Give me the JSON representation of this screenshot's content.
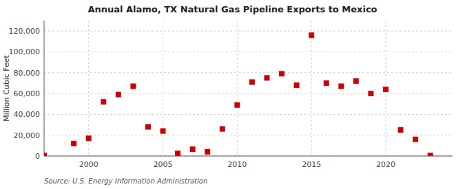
{
  "chart_data": {
    "type": "scatter",
    "title": "Annual Alamo, TX Natural Gas Pipeline Exports to Mexico",
    "ylabel": "Million Cubic Feet",
    "source": "Source: U.S. Energy Information Administration",
    "x": [
      1997,
      1999,
      2000,
      2001,
      2002,
      2003,
      2004,
      2005,
      2006,
      2007,
      2008,
      2009,
      2010,
      2011,
      2012,
      2013,
      2014,
      2015,
      2016,
      2017,
      2018,
      2019,
      2020,
      2021,
      2022,
      2023
    ],
    "values": [
      500,
      12000,
      17000,
      52000,
      59000,
      67000,
      28000,
      24000,
      2500,
      6500,
      4000,
      26000,
      49000,
      71000,
      75000,
      79000,
      68000,
      116000,
      70000,
      67000,
      72000,
      60000,
      64000,
      25000,
      16000,
      500
    ],
    "color": "#cc0000",
    "marker": "square",
    "xlim": [
      1997,
      2024.5
    ],
    "ylim": [
      0,
      130000
    ],
    "xticks": [
      2000,
      2005,
      2010,
      2015,
      2020
    ],
    "yticks": [
      0,
      {
        "value": 20000,
        "label": "20,000"
      },
      {
        "value": 40000,
        "label": "40,000"
      },
      {
        "value": 60000,
        "label": "60,000"
      },
      {
        "value": 80000,
        "label": "80,000"
      },
      {
        "value": 100000,
        "label": "100,000"
      },
      {
        "value": 120000,
        "label": "120,000"
      }
    ],
    "grid": true
  }
}
